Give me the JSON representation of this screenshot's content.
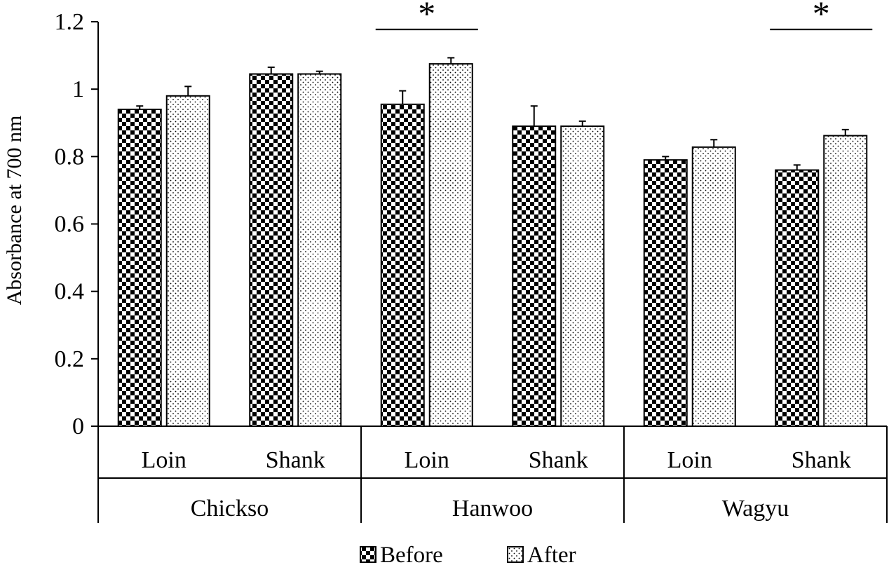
{
  "chart_data": {
    "type": "bar",
    "ylabel": "Absorbance at 700 nm",
    "ylim": [
      0,
      1.2
    ],
    "yticks": [
      0,
      0.2,
      0.4,
      0.6,
      0.8,
      1,
      1.2
    ],
    "ytick_labels": [
      "0",
      "0.2",
      "0.4",
      "0.6",
      "0.8",
      "1",
      "1.2"
    ],
    "groups": [
      "Chickso",
      "Hanwoo",
      "Wagyu"
    ],
    "categories": [
      "Loin",
      "Shank",
      "Loin",
      "Shank",
      "Loin",
      "Shank"
    ],
    "series": [
      {
        "name": "Before",
        "values": [
          0.94,
          1.045,
          0.955,
          0.89,
          0.79,
          0.76
        ],
        "errors": [
          0.01,
          0.02,
          0.04,
          0.06,
          0.01,
          0.015
        ],
        "pattern": "checkerboard"
      },
      {
        "name": "After",
        "values": [
          0.98,
          1.045,
          1.075,
          0.89,
          0.828,
          0.862
        ],
        "errors": [
          0.028,
          0.008,
          0.018,
          0.015,
          0.022,
          0.018
        ],
        "pattern": "dotted"
      }
    ],
    "significance": [
      {
        "category_index": 2,
        "label": "*"
      },
      {
        "category_index": 5,
        "label": "*"
      }
    ],
    "legend_position": "bottom-center",
    "grid": false,
    "colors": {
      "bar_fill": "#000000",
      "background": "#ffffff"
    }
  }
}
